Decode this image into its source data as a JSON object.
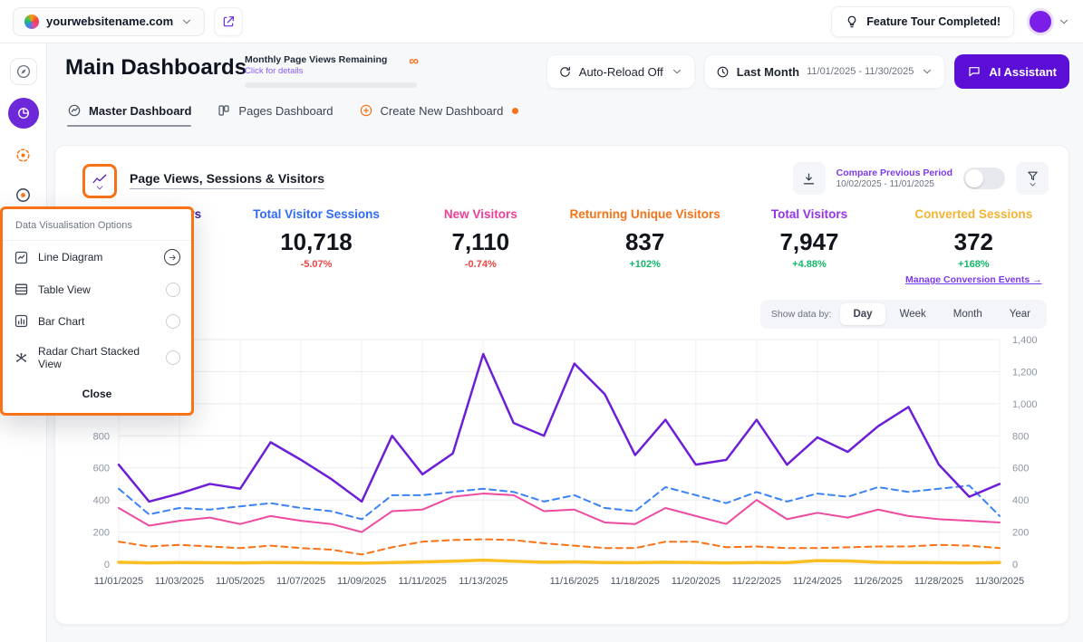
{
  "topbar": {
    "site_name": "yourwebsitename.com",
    "feature_tour_label": "Feature Tour Completed!"
  },
  "header": {
    "title": "Main Dashboards",
    "quota_label": "Monthly Page Views Remaining",
    "quota_link": "Click for details",
    "quota_infinity": "∞",
    "auto_reload_label": "Auto-Reload Off",
    "period_label": "Last Month",
    "period_range": "11/01/2025 - 11/30/2025",
    "ai_assistant_label": "AI Assistant"
  },
  "tabs": [
    {
      "label": "Master Dashboard"
    },
    {
      "label": "Pages Dashboard"
    },
    {
      "label": "Create New Dashboard"
    }
  ],
  "widget": {
    "title": "Page Views, Sessions & Visitors",
    "compare_label": "Compare Previous Period",
    "compare_range": "10/02/2025 - 11/01/2025",
    "show_data_by_label": "Show data by:",
    "period_options": [
      "Day",
      "Week",
      "Month",
      "Year"
    ],
    "active_period": "Day"
  },
  "viz_popup": {
    "title": "Data Visualisation Options",
    "options": [
      {
        "label": "Line Diagram",
        "selected": true
      },
      {
        "label": "Table View",
        "selected": false
      },
      {
        "label": "Bar Chart",
        "selected": false
      },
      {
        "label": "Radar Chart Stacked View",
        "selected": false
      }
    ],
    "close_label": "Close"
  },
  "stats": [
    {
      "label": "Total Page Views",
      "value": "",
      "change": "",
      "color": "#3b1fa8",
      "change_color": "#12b76a"
    },
    {
      "label": "Total Visitor Sessions",
      "value": "10,718",
      "change": "-5.07%",
      "color": "#2f6bf6",
      "change_color": "#ef4444"
    },
    {
      "label": "New Visitors",
      "value": "7,110",
      "change": "-0.74%",
      "color": "#ef3e97",
      "change_color": "#ef4444"
    },
    {
      "label": "Returning Unique Visitors",
      "value": "837",
      "change": "+102%",
      "color": "#f97316",
      "change_color": "#12b76a"
    },
    {
      "label": "Total Visitors",
      "value": "7,947",
      "change": "+4.88%",
      "color": "#9333ea",
      "change_color": "#12b76a"
    },
    {
      "label": "Converted Sessions",
      "value": "372",
      "change": "+168%",
      "color": "#f4b333",
      "change_color": "#12b76a",
      "link": "Manage Conversion Events →"
    }
  ],
  "chart_data": {
    "type": "line",
    "title": "Page Views, Sessions & Visitors",
    "x_start": "11/01/2025",
    "x_end": "11/30/2025",
    "x_interval": "day",
    "x_count": 30,
    "x_labels": [
      "11/01/2025",
      "11/03/2025",
      "11/05/2025",
      "11/07/2025",
      "11/09/2025",
      "11/11/2025",
      "11/13/2025",
      "11/16/2025",
      "11/18/2025",
      "11/20/2025",
      "11/22/2025",
      "11/24/2025",
      "11/26/2025",
      "11/28/2025",
      "11/30/2025"
    ],
    "x_label_idx": [
      0,
      2,
      4,
      6,
      8,
      10,
      12,
      15,
      17,
      19,
      21,
      23,
      25,
      27,
      29
    ],
    "ylim": [
      0,
      1400
    ],
    "y_ticks": [
      0,
      200,
      400,
      600,
      800,
      1000,
      1200,
      1400
    ],
    "grid": true,
    "legend_position": "none",
    "series": [
      {
        "name": "Converted Sessions",
        "color": "#fbbf24",
        "dash": null,
        "width": 3.5,
        "values": [
          12,
          8,
          10,
          9,
          8,
          10,
          9,
          8,
          6,
          10,
          14,
          18,
          25,
          18,
          12,
          14,
          10,
          9,
          12,
          10,
          8,
          10,
          9,
          22,
          20,
          12,
          10,
          9,
          8,
          10
        ]
      },
      {
        "name": "Returning Unique Visitors",
        "color": "#f97316",
        "dash": "7 5",
        "width": 2,
        "values": [
          140,
          110,
          120,
          110,
          100,
          115,
          100,
          90,
          60,
          105,
          140,
          150,
          155,
          150,
          130,
          115,
          100,
          100,
          140,
          140,
          105,
          110,
          100,
          100,
          105,
          110,
          110,
          120,
          115,
          100
        ]
      },
      {
        "name": "New Visitors",
        "color": "#ee4aa0",
        "dash": null,
        "width": 2,
        "values": [
          350,
          240,
          270,
          290,
          250,
          300,
          270,
          250,
          200,
          330,
          340,
          420,
          440,
          430,
          330,
          340,
          260,
          250,
          350,
          300,
          250,
          400,
          280,
          320,
          290,
          340,
          300,
          280,
          270,
          260
        ]
      },
      {
        "name": "Total Visitor Sessions",
        "color": "#3b82f6",
        "dash": "7 5",
        "width": 2,
        "values": [
          470,
          310,
          350,
          340,
          360,
          380,
          350,
          330,
          280,
          430,
          430,
          450,
          470,
          450,
          390,
          430,
          350,
          330,
          480,
          430,
          380,
          450,
          390,
          440,
          420,
          480,
          450,
          470,
          490,
          300
        ]
      },
      {
        "name": "Total Visitors",
        "color": "#6d1fd8",
        "dash": null,
        "width": 2.5,
        "values": [
          620,
          390,
          440,
          500,
          470,
          760,
          650,
          530,
          390,
          800,
          560,
          690,
          1310,
          880,
          800,
          1250,
          1060,
          680,
          900,
          620,
          650,
          900,
          620,
          790,
          700,
          860,
          980,
          620,
          420,
          500
        ]
      }
    ]
  }
}
